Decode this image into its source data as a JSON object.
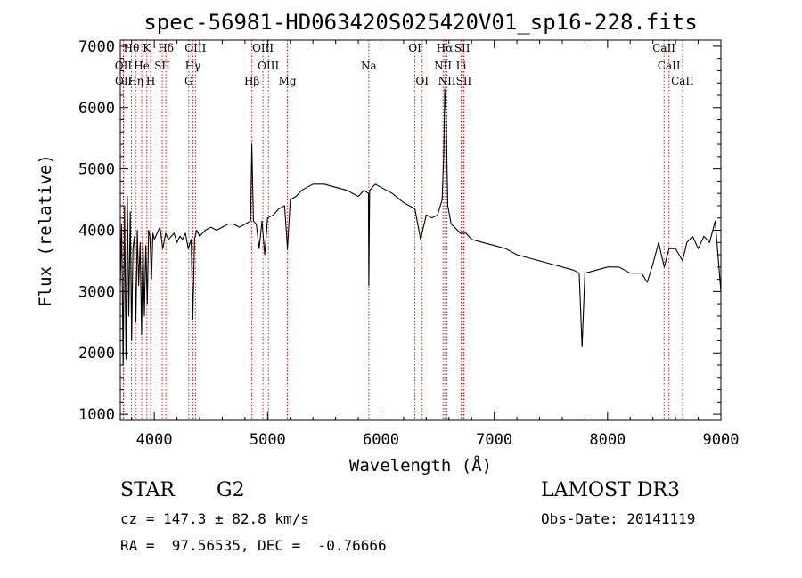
{
  "chart_data": {
    "type": "line",
    "title": "spec-56981-HD063420S025420V01_sp16-228.fits",
    "xlabel": "Wavelength (Å)",
    "ylabel": "Flux (relative)",
    "xlim": [
      3700,
      9000
    ],
    "ylim": [
      900,
      7100
    ],
    "xticks": [
      4000,
      5000,
      6000,
      7000,
      8000,
      9000
    ],
    "yticks": [
      1000,
      2000,
      3000,
      4000,
      5000,
      6000,
      7000
    ],
    "line_color": "#000000",
    "marker_color": "#cc0000",
    "series": [
      {
        "x": [
          3700,
          3712,
          3725,
          3738,
          3750,
          3762,
          3775,
          3788,
          3800,
          3812,
          3825,
          3838,
          3850,
          3862,
          3875,
          3888,
          3900,
          3912,
          3925,
          3938,
          3950,
          3962,
          3975,
          3988,
          4000,
          4025,
          4050,
          4075,
          4100,
          4125,
          4150,
          4175,
          4200,
          4225,
          4250,
          4275,
          4300,
          4325,
          4340,
          4355,
          4375,
          4400,
          4450,
          4500,
          4550,
          4600,
          4650,
          4700,
          4750,
          4800,
          4850,
          4861,
          4875,
          4900,
          4925,
          4950,
          4975,
          5000,
          5050,
          5100,
          5150,
          5175,
          5200,
          5250,
          5300,
          5400,
          5500,
          5600,
          5700,
          5800,
          5850,
          5890,
          5893,
          5900,
          5950,
          6000,
          6100,
          6200,
          6300,
          6350,
          6400,
          6450,
          6500,
          6540,
          6555,
          6563,
          6575,
          6590,
          6620,
          6650,
          6700,
          6750,
          6800,
          6900,
          7000,
          7100,
          7200,
          7300,
          7400,
          7500,
          7600,
          7700,
          7750,
          7775,
          7800,
          7900,
          8000,
          8100,
          8200,
          8300,
          8350,
          8400,
          8450,
          8500,
          8542,
          8600,
          8662,
          8700,
          8750,
          8800,
          8850,
          8900,
          8950,
          9000
        ],
        "y": [
          3100,
          4100,
          1800,
          4400,
          1900,
          4550,
          2600,
          4300,
          2200,
          3700,
          3900,
          2500,
          4000,
          3100,
          3800,
          2300,
          3900,
          2600,
          3750,
          2800,
          4000,
          3900,
          3200,
          3950,
          3850,
          3950,
          4050,
          3700,
          3950,
          3850,
          3900,
          3950,
          3800,
          3900,
          3850,
          3950,
          3700,
          3850,
          2550,
          3850,
          4000,
          3900,
          4000,
          4050,
          4000,
          4050,
          4100,
          4100,
          4050,
          4100,
          4150,
          5400,
          4150,
          4100,
          3700,
          4150,
          3600,
          4200,
          4250,
          4350,
          4400,
          3700,
          4500,
          4550,
          4650,
          4750,
          4750,
          4700,
          4650,
          4550,
          4650,
          4600,
          3100,
          4650,
          4750,
          4700,
          4600,
          4450,
          4350,
          3850,
          4250,
          4200,
          4250,
          4500,
          5300,
          6300,
          5900,
          4400,
          4100,
          4050,
          3950,
          3950,
          3850,
          3800,
          3750,
          3700,
          3600,
          3550,
          3500,
          3450,
          3400,
          3350,
          3300,
          2100,
          3300,
          3350,
          3400,
          3400,
          3300,
          3300,
          3150,
          3450,
          3800,
          3400,
          3700,
          3700,
          3500,
          3800,
          3900,
          3700,
          3900,
          3800,
          4150,
          3000
        ]
      }
    ],
    "lines_top": [
      {
        "label": "Hθ",
        "x": 3798
      },
      {
        "label": "K",
        "x": 3934
      },
      {
        "label": "Hδ",
        "x": 4102
      },
      {
        "label": "OIII",
        "x": 4363
      },
      {
        "label": "OIII",
        "x": 4959
      },
      {
        "label": "OI",
        "x": 6300
      },
      {
        "label": "Hα",
        "x": 6563
      },
      {
        "label": "SII",
        "x": 6717
      },
      {
        "label": "CaII",
        "x": 8498
      }
    ],
    "lines_mid": [
      {
        "label": "OII",
        "x": 3727
      },
      {
        "label": "He",
        "x": 3889
      },
      {
        "label": "SII",
        "x": 4070
      },
      {
        "label": "Hγ",
        "x": 4340
      },
      {
        "label": "OIII",
        "x": 5007
      },
      {
        "label": "Na",
        "x": 5893
      },
      {
        "label": "NII",
        "x": 6548
      },
      {
        "label": "Li",
        "x": 6708
      },
      {
        "label": "CaII",
        "x": 8542
      }
    ],
    "lines_bot": [
      {
        "label": "OII",
        "x": 3729
      },
      {
        "label": "Hη",
        "x": 3835
      },
      {
        "label": "H",
        "x": 3968
      },
      {
        "label": "G",
        "x": 4304
      },
      {
        "label": "Hβ",
        "x": 4861
      },
      {
        "label": "Mg",
        "x": 5175
      },
      {
        "label": "OI",
        "x": 6364
      },
      {
        "label": "NII",
        "x": 6583
      },
      {
        "label": "SII",
        "x": 6731
      },
      {
        "label": "CaII",
        "x": 8662
      }
    ]
  },
  "info": {
    "class": "STAR",
    "subclass": "G2",
    "survey": "LAMOST DR3",
    "cz": "cz = 147.3 ± 82.8 km/s",
    "obs_date": "Obs-Date: 20141119",
    "coords": "RA =  97.56535, DEC =  -0.76666"
  }
}
